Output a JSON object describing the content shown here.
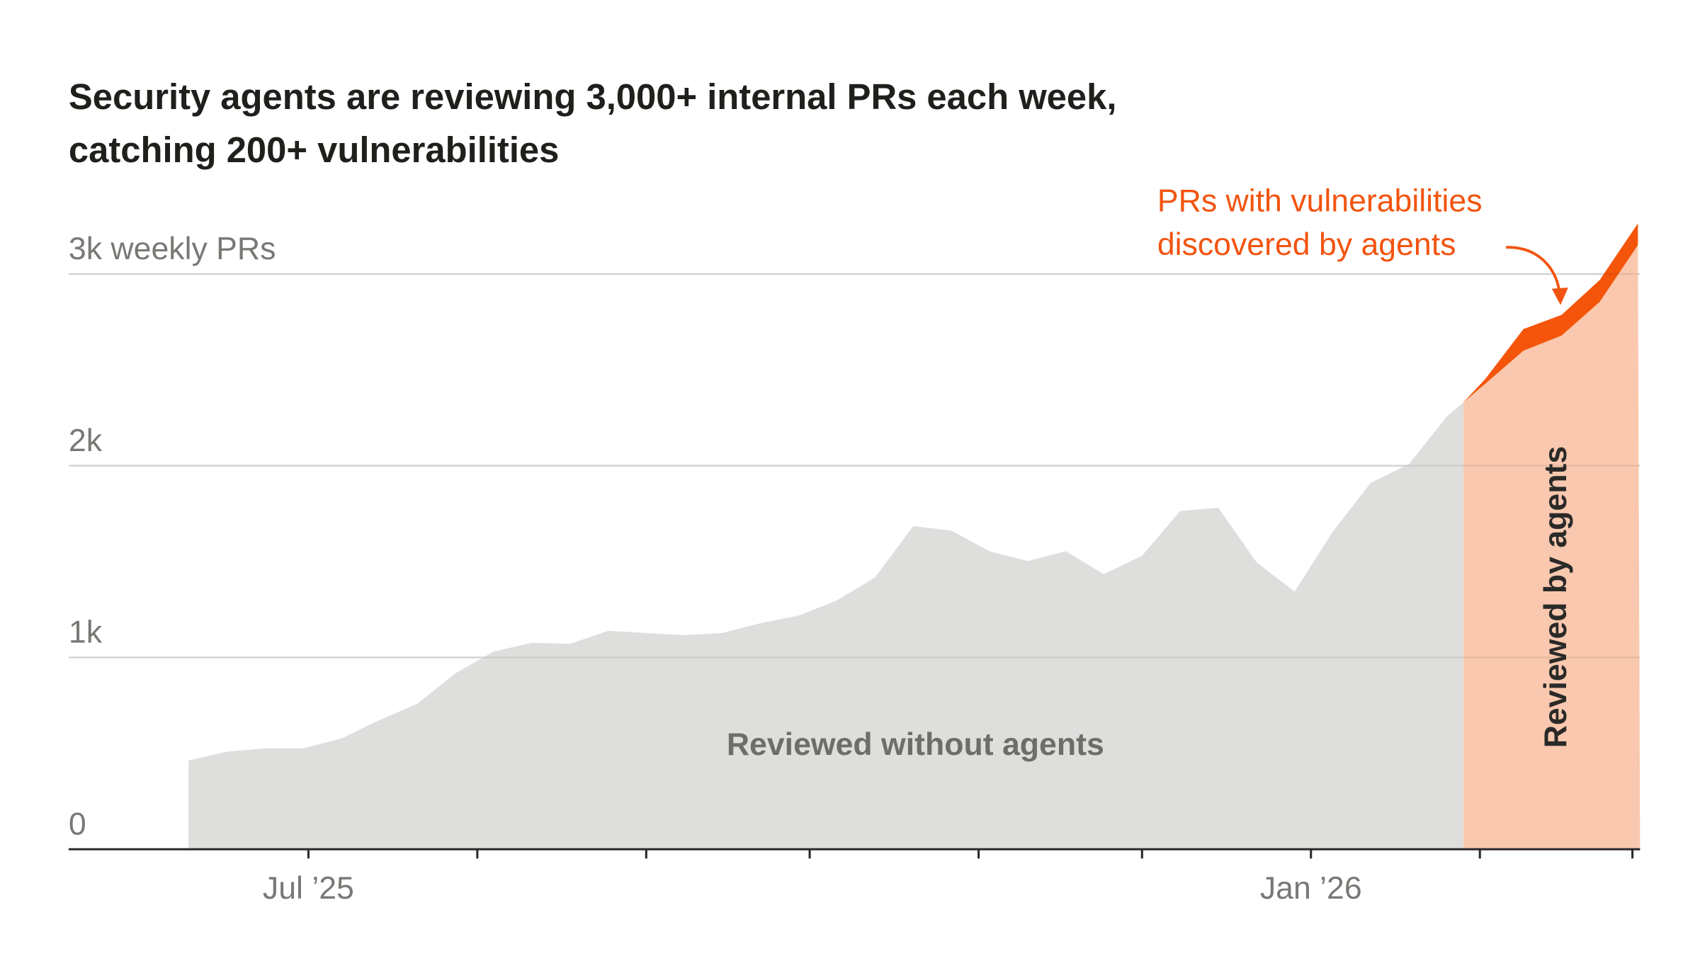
{
  "chart_data": {
    "type": "area",
    "title": "Security agents are reviewing 3,000+ internal PRs each week, catching 200+ vulnerabilities",
    "title_lines": [
      "Security agents are reviewing 3,000+ internal PRs each week,",
      "catching 200+ vulnerabilities"
    ],
    "ylabel": "3k weekly PRs",
    "ylim": [
      0,
      3000
    ],
    "y_ticks": [
      {
        "value": 0,
        "label": "0"
      },
      {
        "value": 1000,
        "label": "1k"
      },
      {
        "value": 2000,
        "label": "2k"
      },
      {
        "value": 3000,
        "label": "3k weekly PRs"
      }
    ],
    "x_ticks": [
      {
        "date": "2025-07-01",
        "label": "Jul ’25"
      },
      {
        "date": "2025-08-01",
        "label": ""
      },
      {
        "date": "2025-09-01",
        "label": ""
      },
      {
        "date": "2025-10-01",
        "label": ""
      },
      {
        "date": "2025-11-01",
        "label": ""
      },
      {
        "date": "2025-12-01",
        "label": ""
      },
      {
        "date": "2026-01-01",
        "label": "Jan ’26"
      },
      {
        "date": "2026-02-01",
        "label": ""
      },
      {
        "date": "2026-03-01",
        "label": ""
      }
    ],
    "grid": true,
    "agents_start": "2026-01-29",
    "x": [
      "2025-06-09",
      "2025-06-16",
      "2025-06-23",
      "2025-06-30",
      "2025-07-07",
      "2025-07-14",
      "2025-07-21",
      "2025-07-28",
      "2025-08-04",
      "2025-08-11",
      "2025-08-18",
      "2025-08-25",
      "2025-09-01",
      "2025-09-08",
      "2025-09-15",
      "2025-09-22",
      "2025-09-29",
      "2025-10-06",
      "2025-10-13",
      "2025-10-20",
      "2025-10-27",
      "2025-11-03",
      "2025-11-10",
      "2025-11-17",
      "2025-11-24",
      "2025-12-01",
      "2025-12-08",
      "2025-12-15",
      "2025-12-22",
      "2025-12-29",
      "2026-01-05",
      "2026-01-12",
      "2026-01-19",
      "2026-01-26",
      "2026-02-02",
      "2026-02-09",
      "2026-02-16",
      "2026-02-23",
      "2026-03-02"
    ],
    "series": [
      {
        "name": "Reviewed without agents",
        "color": "#dededd",
        "values": [
          460,
          506,
          523,
          523,
          574,
          670,
          756,
          915,
          1028,
          1074,
          1068,
          1136,
          1125,
          1114,
          1125,
          1176,
          1216,
          1295,
          1415,
          1682,
          1659,
          1551,
          1500,
          1551,
          1432,
          1528,
          1761,
          1778,
          1494,
          1341,
          1653,
          1909,
          2006,
          2256,
          null,
          null,
          null,
          null,
          null
        ]
      },
      {
        "name": "Reviewed by agents",
        "color": "#f9c8ae",
        "values": [
          null,
          null,
          null,
          null,
          null,
          null,
          null,
          null,
          null,
          null,
          null,
          null,
          null,
          null,
          null,
          null,
          null,
          null,
          null,
          null,
          null,
          null,
          null,
          null,
          null,
          null,
          null,
          null,
          null,
          null,
          null,
          null,
          null,
          2256,
          2425,
          2597,
          2676,
          2852,
          3148
        ]
      },
      {
        "name": "PRs with vulnerabilities discovered by agents",
        "color": "#f5550a",
        "values": [
          null,
          null,
          null,
          null,
          null,
          null,
          null,
          null,
          null,
          null,
          null,
          null,
          null,
          null,
          null,
          null,
          null,
          null,
          null,
          null,
          null,
          null,
          null,
          null,
          null,
          null,
          null,
          null,
          null,
          null,
          null,
          null,
          null,
          0,
          25,
          113,
          108,
          114,
          113
        ]
      }
    ],
    "annotations": {
      "vuln_lines": [
        "PRs with vulnerabilities",
        "discovered by agents"
      ],
      "without_agents": "Reviewed without agents",
      "by_agents": "Reviewed by agents"
    }
  }
}
